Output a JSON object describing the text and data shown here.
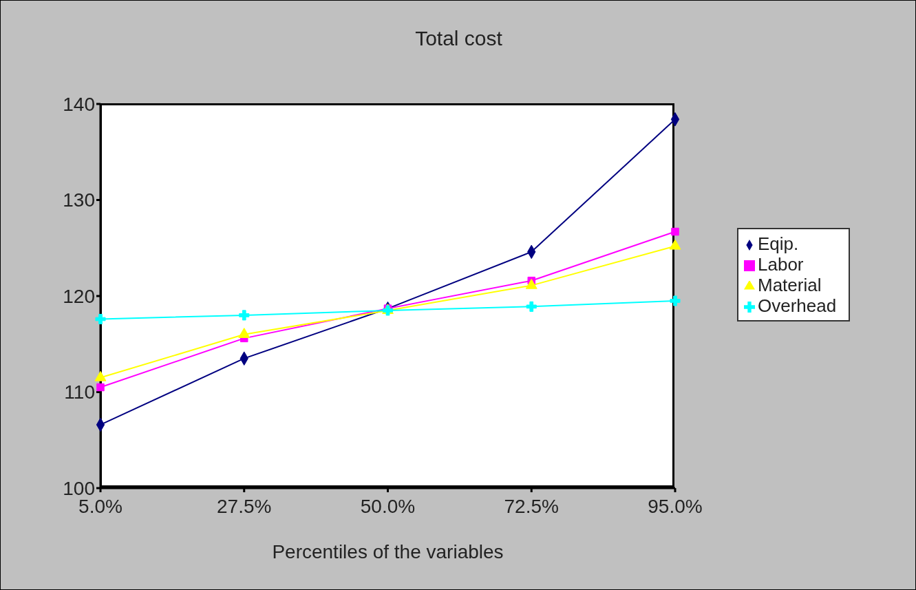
{
  "chart_data": {
    "type": "line",
    "title": "Total cost",
    "xlabel": "Percentiles of the variables",
    "categories": [
      "5.0%",
      "27.5%",
      "50.0%",
      "72.5%",
      "95.0%"
    ],
    "series": [
      {
        "name": "Eqip.",
        "color": "#000080",
        "marker": "diamond",
        "values": [
          106.6,
          113.5,
          118.7,
          124.6,
          138.4
        ]
      },
      {
        "name": "Labor",
        "color": "#ff00ff",
        "marker": "square",
        "values": [
          110.5,
          115.6,
          118.7,
          121.6,
          126.7
        ]
      },
      {
        "name": "Material",
        "color": "#ffff00",
        "marker": "triangle",
        "values": [
          111.5,
          116.0,
          118.5,
          121.1,
          125.2
        ]
      },
      {
        "name": "Overhead",
        "color": "#00ffff",
        "marker": "cross",
        "values": [
          117.6,
          118.0,
          118.5,
          118.9,
          119.5
        ]
      }
    ],
    "ylim": [
      100,
      140
    ],
    "yticks": [
      100,
      110,
      120,
      130,
      140
    ],
    "grid": false,
    "legend": "right"
  }
}
